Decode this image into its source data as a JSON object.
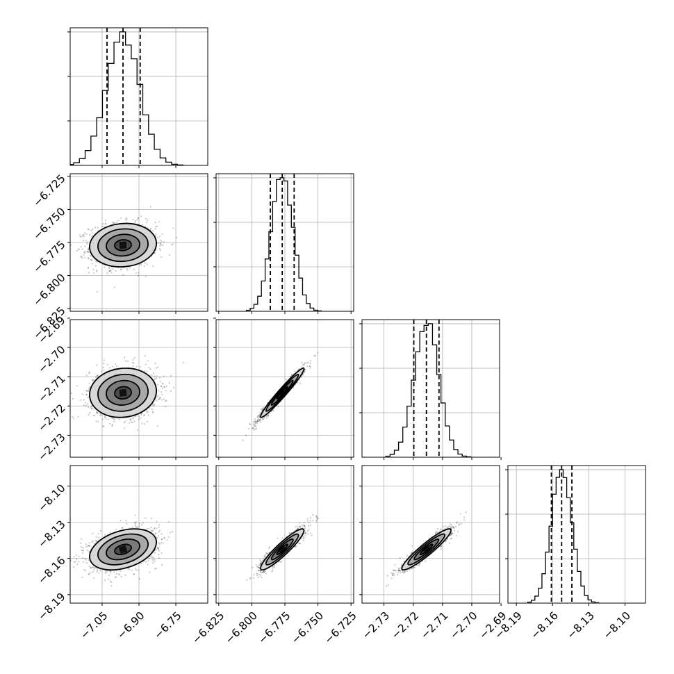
{
  "chart_data": {
    "type": "corner",
    "parameters": [
      {
        "index": 0,
        "mean": -6.965,
        "sd": 0.068,
        "lim": [
          -7.18,
          -6.62
        ],
        "ticks": [
          -7.05,
          -6.9,
          -6.75
        ],
        "tick_labels": [
          "−7.05",
          "−6.90",
          "−6.75"
        ],
        "quantiles": [
          -7.03,
          -6.965,
          -6.895
        ]
      },
      {
        "index": 1,
        "mean": -6.777,
        "sd": 0.0082,
        "lim": [
          -6.827,
          -6.723
        ],
        "ticks": [
          -6.825,
          -6.8,
          -6.775,
          -6.75,
          -6.725
        ],
        "tick_labels": [
          "−6.825",
          "−6.800",
          "−6.775",
          "−6.750",
          "−6.725"
        ],
        "quantiles": [
          -6.786,
          -6.777,
          -6.768
        ]
      },
      {
        "index": 2,
        "mean": -2.7155,
        "sd": 0.0042,
        "lim": [
          -2.7375,
          -2.6905
        ],
        "ticks": [
          -2.73,
          -2.72,
          -2.71,
          -2.7,
          -2.69
        ],
        "tick_labels": [
          "−2.73",
          "−2.72",
          "−2.71",
          "−2.70",
          "−2.69"
        ],
        "quantiles": [
          -2.7198,
          -2.7155,
          -2.7112
        ]
      },
      {
        "index": 3,
        "mean": -8.1525,
        "sd": 0.0085,
        "lim": [
          -8.197,
          -8.083
        ],
        "ticks": [
          -8.19,
          -8.16,
          -8.13,
          -8.1
        ],
        "tick_labels": [
          "−8.19",
          "−8.16",
          "−8.13",
          "−8.10"
        ],
        "quantiles": [
          -8.161,
          -8.1525,
          -8.144
        ]
      }
    ],
    "correlations": [
      {
        "pair": [
          0,
          1
        ],
        "rho": 0.08
      },
      {
        "pair": [
          0,
          2
        ],
        "rho": 0.08
      },
      {
        "pair": [
          0,
          3
        ],
        "rho": 0.35
      },
      {
        "pair": [
          1,
          2
        ],
        "rho": 0.97
      },
      {
        "pair": [
          1,
          3
        ],
        "rho": 0.92
      },
      {
        "pair": [
          2,
          3
        ],
        "rho": 0.93
      }
    ],
    "histogram_bins": 20,
    "contour_levels_sigma": [
      0.5,
      1.0,
      1.5,
      2.0
    ],
    "grid": true
  }
}
